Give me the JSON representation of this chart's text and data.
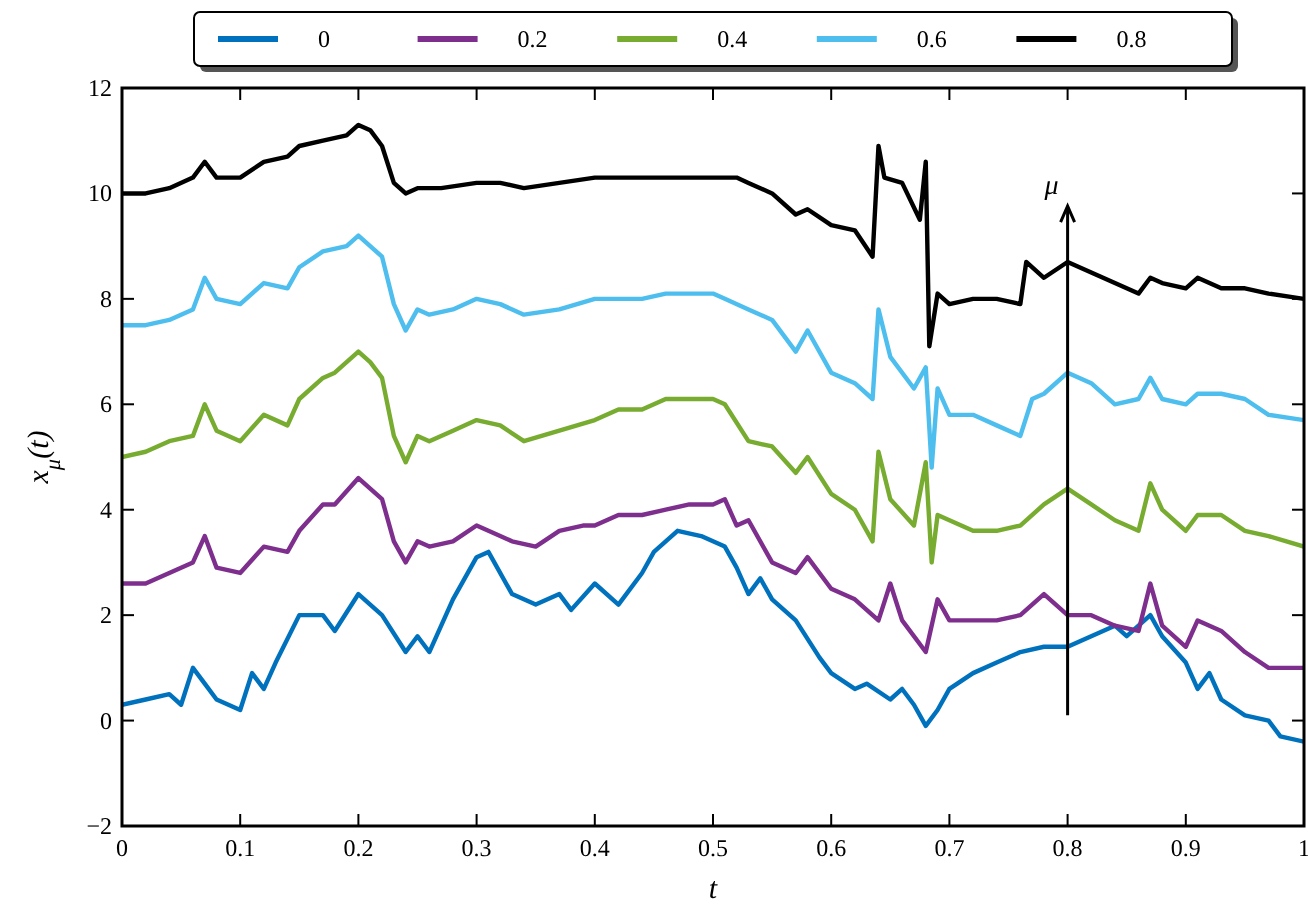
{
  "chart_data": {
    "type": "line",
    "xlabel": "t",
    "ylabel": "x$_{μ}$(t)",
    "xlim": [
      0,
      1
    ],
    "ylim": [
      -2,
      12
    ],
    "xticks": [
      0,
      0.1,
      0.2,
      0.3,
      0.4,
      0.5,
      0.6,
      0.7,
      0.8,
      0.9,
      1
    ],
    "yticks": [
      -2,
      0,
      2,
      4,
      6,
      8,
      10,
      12
    ],
    "grid": false,
    "legend": "top",
    "line_style": "solid",
    "annotations": [
      "μ"
    ],
    "series": [
      {
        "name": "0",
        "color": "#0072bd",
        "x": [
          0,
          0.02,
          0.04,
          0.05,
          0.06,
          0.07,
          0.08,
          0.1,
          0.11,
          0.12,
          0.13,
          0.15,
          0.17,
          0.18,
          0.2,
          0.21,
          0.22,
          0.24,
          0.25,
          0.26,
          0.28,
          0.3,
          0.31,
          0.33,
          0.35,
          0.37,
          0.38,
          0.4,
          0.42,
          0.44,
          0.45,
          0.47,
          0.49,
          0.5,
          0.51,
          0.52,
          0.53,
          0.54,
          0.55,
          0.57,
          0.59,
          0.6,
          0.62,
          0.63,
          0.65,
          0.66,
          0.67,
          0.68,
          0.69,
          0.7,
          0.72,
          0.74,
          0.76,
          0.78,
          0.8,
          0.82,
          0.84,
          0.85,
          0.87,
          0.88,
          0.9,
          0.91,
          0.92,
          0.93,
          0.95,
          0.97,
          0.98,
          1
        ],
        "values": [
          0.3,
          0.4,
          0.5,
          0.3,
          1.0,
          0.7,
          0.4,
          0.2,
          0.9,
          0.6,
          1.1,
          2.0,
          2.0,
          1.7,
          2.4,
          2.2,
          2.0,
          1.3,
          1.6,
          1.3,
          2.3,
          3.1,
          3.2,
          2.4,
          2.2,
          2.4,
          2.1,
          2.6,
          2.2,
          2.8,
          3.2,
          3.6,
          3.5,
          3.4,
          3.3,
          2.9,
          2.4,
          2.7,
          2.3,
          1.9,
          1.2,
          0.9,
          0.6,
          0.7,
          0.4,
          0.6,
          0.3,
          -0.1,
          0.2,
          0.6,
          0.9,
          1.1,
          1.3,
          1.4,
          1.4,
          1.6,
          1.8,
          1.6,
          2.0,
          1.6,
          1.1,
          0.6,
          0.9,
          0.4,
          0.1,
          0.0,
          -0.3,
          -0.4
        ]
      },
      {
        "name": "0.2",
        "color": "#7e2f8e",
        "x": [
          0,
          0.02,
          0.04,
          0.06,
          0.07,
          0.08,
          0.1,
          0.12,
          0.14,
          0.15,
          0.17,
          0.18,
          0.2,
          0.21,
          0.22,
          0.23,
          0.24,
          0.25,
          0.26,
          0.28,
          0.3,
          0.31,
          0.33,
          0.35,
          0.37,
          0.39,
          0.4,
          0.42,
          0.44,
          0.46,
          0.48,
          0.5,
          0.51,
          0.52,
          0.53,
          0.55,
          0.57,
          0.58,
          0.6,
          0.62,
          0.64,
          0.65,
          0.66,
          0.68,
          0.69,
          0.7,
          0.72,
          0.74,
          0.76,
          0.78,
          0.8,
          0.82,
          0.84,
          0.86,
          0.87,
          0.88,
          0.9,
          0.91,
          0.93,
          0.95,
          0.97,
          1
        ],
        "values": [
          2.6,
          2.6,
          2.8,
          3.0,
          3.5,
          2.9,
          2.8,
          3.3,
          3.2,
          3.6,
          4.1,
          4.1,
          4.6,
          4.4,
          4.2,
          3.4,
          3.0,
          3.4,
          3.3,
          3.4,
          3.7,
          3.6,
          3.4,
          3.3,
          3.6,
          3.7,
          3.7,
          3.9,
          3.9,
          4.0,
          4.1,
          4.1,
          4.2,
          3.7,
          3.8,
          3.0,
          2.8,
          3.1,
          2.5,
          2.3,
          1.9,
          2.6,
          1.9,
          1.3,
          2.3,
          1.9,
          1.9,
          1.9,
          2.0,
          2.4,
          2.0,
          2.0,
          1.8,
          1.7,
          2.6,
          1.8,
          1.4,
          1.9,
          1.7,
          1.3,
          1.0,
          1.0
        ]
      },
      {
        "name": "0.4",
        "color": "#77ac30",
        "x": [
          0,
          0.02,
          0.04,
          0.06,
          0.07,
          0.08,
          0.1,
          0.12,
          0.14,
          0.15,
          0.17,
          0.18,
          0.2,
          0.21,
          0.22,
          0.23,
          0.24,
          0.25,
          0.26,
          0.28,
          0.3,
          0.32,
          0.34,
          0.37,
          0.4,
          0.42,
          0.44,
          0.46,
          0.5,
          0.51,
          0.53,
          0.55,
          0.57,
          0.58,
          0.6,
          0.62,
          0.635,
          0.64,
          0.65,
          0.67,
          0.68,
          0.685,
          0.69,
          0.7,
          0.72,
          0.74,
          0.76,
          0.78,
          0.8,
          0.82,
          0.84,
          0.86,
          0.87,
          0.88,
          0.9,
          0.91,
          0.93,
          0.95,
          0.97,
          1
        ],
        "values": [
          5.0,
          5.1,
          5.3,
          5.4,
          6.0,
          5.5,
          5.3,
          5.8,
          5.6,
          6.1,
          6.5,
          6.6,
          7.0,
          6.8,
          6.5,
          5.4,
          4.9,
          5.4,
          5.3,
          5.5,
          5.7,
          5.6,
          5.3,
          5.5,
          5.7,
          5.9,
          5.9,
          6.1,
          6.1,
          6.0,
          5.3,
          5.2,
          4.7,
          5.0,
          4.3,
          4.0,
          3.4,
          5.1,
          4.2,
          3.7,
          4.9,
          3.0,
          3.9,
          3.8,
          3.6,
          3.6,
          3.7,
          4.1,
          4.4,
          4.1,
          3.8,
          3.6,
          4.5,
          4.0,
          3.6,
          3.9,
          3.9,
          3.6,
          3.5,
          3.3
        ]
      },
      {
        "name": "0.6",
        "color": "#4dbeee",
        "x": [
          0,
          0.02,
          0.04,
          0.06,
          0.07,
          0.08,
          0.1,
          0.12,
          0.14,
          0.15,
          0.17,
          0.19,
          0.2,
          0.21,
          0.22,
          0.23,
          0.24,
          0.25,
          0.26,
          0.28,
          0.3,
          0.32,
          0.34,
          0.37,
          0.4,
          0.42,
          0.44,
          0.46,
          0.5,
          0.51,
          0.53,
          0.55,
          0.57,
          0.58,
          0.6,
          0.62,
          0.635,
          0.64,
          0.65,
          0.67,
          0.68,
          0.685,
          0.69,
          0.7,
          0.72,
          0.74,
          0.76,
          0.77,
          0.78,
          0.8,
          0.82,
          0.84,
          0.86,
          0.87,
          0.88,
          0.9,
          0.91,
          0.93,
          0.95,
          0.97,
          1
        ],
        "values": [
          7.5,
          7.5,
          7.6,
          7.8,
          8.4,
          8.0,
          7.9,
          8.3,
          8.2,
          8.6,
          8.9,
          9.0,
          9.2,
          9.0,
          8.8,
          7.9,
          7.4,
          7.8,
          7.7,
          7.8,
          8.0,
          7.9,
          7.7,
          7.8,
          8.0,
          8.0,
          8.0,
          8.1,
          8.1,
          8.0,
          7.8,
          7.6,
          7.0,
          7.4,
          6.6,
          6.4,
          6.1,
          7.8,
          6.9,
          6.3,
          6.7,
          4.8,
          6.3,
          5.8,
          5.8,
          5.6,
          5.4,
          6.1,
          6.2,
          6.6,
          6.4,
          6.0,
          6.1,
          6.5,
          6.1,
          6.0,
          6.2,
          6.2,
          6.1,
          5.8,
          5.7
        ]
      },
      {
        "name": "0.8",
        "color": "#000000",
        "x": [
          0,
          0.02,
          0.04,
          0.06,
          0.07,
          0.08,
          0.1,
          0.12,
          0.14,
          0.15,
          0.17,
          0.19,
          0.2,
          0.21,
          0.22,
          0.23,
          0.24,
          0.25,
          0.27,
          0.3,
          0.32,
          0.34,
          0.37,
          0.4,
          0.42,
          0.44,
          0.46,
          0.5,
          0.52,
          0.53,
          0.55,
          0.57,
          0.58,
          0.6,
          0.62,
          0.635,
          0.64,
          0.645,
          0.66,
          0.675,
          0.68,
          0.683,
          0.69,
          0.7,
          0.72,
          0.74,
          0.76,
          0.765,
          0.78,
          0.8,
          0.82,
          0.84,
          0.86,
          0.87,
          0.88,
          0.9,
          0.91,
          0.93,
          0.95,
          0.97,
          1
        ],
        "values": [
          10.0,
          10.0,
          10.1,
          10.3,
          10.6,
          10.3,
          10.3,
          10.6,
          10.7,
          10.9,
          11.0,
          11.1,
          11.3,
          11.2,
          10.9,
          10.2,
          10.0,
          10.1,
          10.1,
          10.2,
          10.2,
          10.1,
          10.2,
          10.3,
          10.3,
          10.3,
          10.3,
          10.3,
          10.3,
          10.2,
          10.0,
          9.6,
          9.7,
          9.4,
          9.3,
          8.8,
          10.9,
          10.3,
          10.2,
          9.5,
          10.6,
          7.1,
          8.1,
          7.9,
          8.0,
          8.0,
          7.9,
          8.7,
          8.4,
          8.7,
          8.5,
          8.3,
          8.1,
          8.4,
          8.3,
          8.2,
          8.4,
          8.2,
          8.2,
          8.1,
          8.0
        ]
      }
    ]
  }
}
